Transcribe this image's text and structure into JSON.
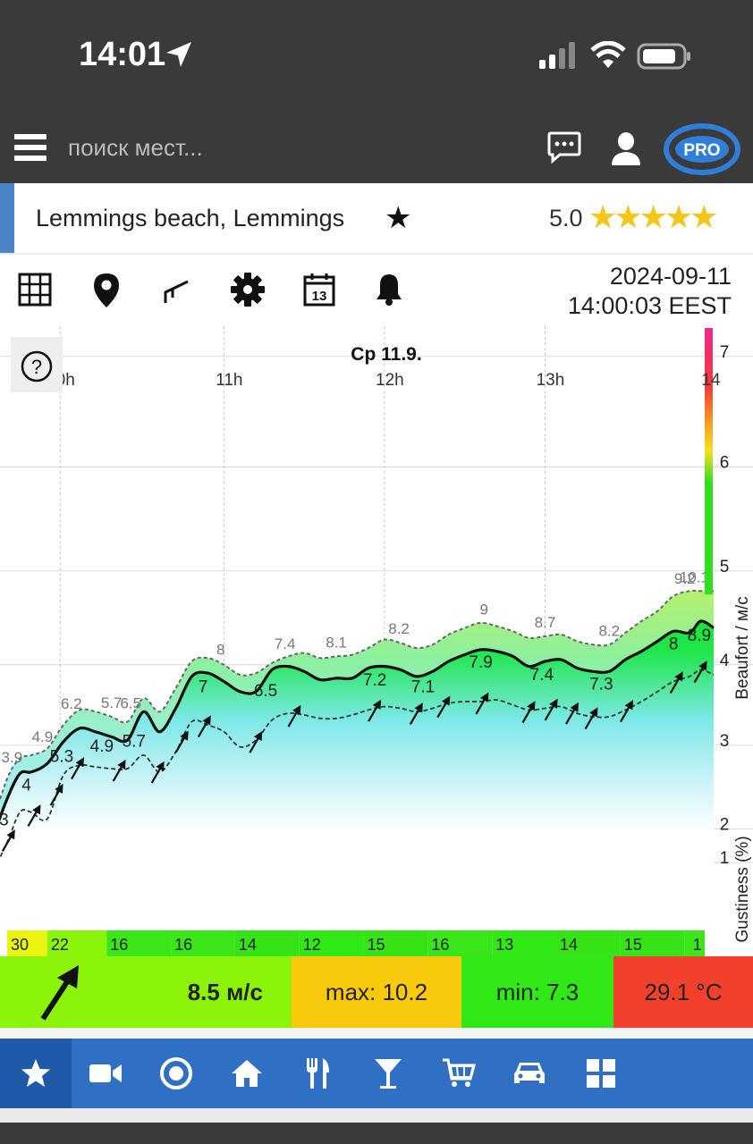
{
  "status_bar": {
    "time": "14:01"
  },
  "top_bar": {
    "search_placeholder": "поиск мест...",
    "pro_label": "PRO"
  },
  "spot": {
    "name": "Lemmings beach, Lemmings",
    "rating": "5.0",
    "stars": "★★★★★"
  },
  "toolbar": {
    "date": "2024-09-11",
    "time": "14:00:03 EEST",
    "calendar_day": "13"
  },
  "chart_data": {
    "type": "area",
    "title": "Ср 11.9.",
    "help_label": "?",
    "time_labels": [
      {
        "t": 9.98,
        "label": "0h"
      },
      {
        "t": 11,
        "label": "11h"
      },
      {
        "t": 12,
        "label": "12h"
      },
      {
        "t": 13,
        "label": "13h"
      },
      {
        "t": 14,
        "label": "14"
      }
    ],
    "y_right_label": "Beaufort / м/с",
    "y_right_label_2": "Gustiness (%)",
    "beaufort_ticks": [
      {
        "value": 2.0,
        "label": "1"
      },
      {
        "value": 3.0,
        "label": "2"
      },
      {
        "value": 5.5,
        "label": "3"
      },
      {
        "value": 7.9,
        "label": "4"
      },
      {
        "value": 10.7,
        "label": "5"
      },
      {
        "value": 13.8,
        "label": "6"
      },
      {
        "value": 17.1,
        "label": "7"
      }
    ],
    "ylim": [
      0,
      18
    ],
    "xlim": [
      9.55,
      14.05
    ],
    "wind": [
      [
        9.55,
        2.6
      ],
      [
        9.65,
        3.9
      ],
      [
        9.73,
        4.65
      ],
      [
        9.8,
        4.7
      ],
      [
        9.9,
        4.95
      ],
      [
        10.0,
        5.6
      ],
      [
        10.1,
        6.0
      ],
      [
        10.2,
        5.9
      ],
      [
        10.3,
        5.75
      ],
      [
        10.4,
        5.65
      ],
      [
        10.5,
        6.5
      ],
      [
        10.6,
        5.9
      ],
      [
        10.7,
        6.6
      ],
      [
        10.8,
        7.55
      ],
      [
        10.9,
        7.65
      ],
      [
        11.0,
        7.4
      ],
      [
        11.1,
        7.1
      ],
      [
        11.2,
        7.1
      ],
      [
        11.3,
        7.75
      ],
      [
        11.4,
        7.85
      ],
      [
        11.5,
        7.7
      ],
      [
        11.6,
        7.45
      ],
      [
        11.7,
        7.5
      ],
      [
        11.8,
        7.5
      ],
      [
        11.9,
        7.8
      ],
      [
        12.0,
        7.85
      ],
      [
        12.1,
        7.75
      ],
      [
        12.2,
        7.55
      ],
      [
        12.3,
        7.7
      ],
      [
        12.4,
        8.0
      ],
      [
        12.5,
        8.2
      ],
      [
        12.6,
        8.35
      ],
      [
        12.7,
        8.3
      ],
      [
        12.8,
        8.15
      ],
      [
        12.9,
        7.85
      ],
      [
        13.0,
        8.0
      ],
      [
        13.1,
        8.05
      ],
      [
        13.2,
        7.8
      ],
      [
        13.3,
        7.7
      ],
      [
        13.4,
        7.7
      ],
      [
        13.5,
        8.05
      ],
      [
        13.6,
        8.3
      ],
      [
        13.7,
        8.6
      ],
      [
        13.8,
        8.9
      ],
      [
        13.9,
        8.85
      ],
      [
        13.97,
        9.2
      ],
      [
        14.05,
        9.0
      ]
    ],
    "gust": [
      [
        9.55,
        3.0
      ],
      [
        9.65,
        4.5
      ],
      [
        9.73,
        5.1
      ],
      [
        9.8,
        5.2
      ],
      [
        9.9,
        5.4
      ],
      [
        10.0,
        6.1
      ],
      [
        10.1,
        6.55
      ],
      [
        10.2,
        6.5
      ],
      [
        10.3,
        6.35
      ],
      [
        10.4,
        6.2
      ],
      [
        10.5,
        6.9
      ],
      [
        10.6,
        6.5
      ],
      [
        10.7,
        7.2
      ],
      [
        10.8,
        8.0
      ],
      [
        10.9,
        8.1
      ],
      [
        11.0,
        7.9
      ],
      [
        11.1,
        7.6
      ],
      [
        11.2,
        7.65
      ],
      [
        11.3,
        7.95
      ],
      [
        11.4,
        8.15
      ],
      [
        11.5,
        8.25
      ],
      [
        11.6,
        8.1
      ],
      [
        11.7,
        8.15
      ],
      [
        11.8,
        8.2
      ],
      [
        11.9,
        8.4
      ],
      [
        12.0,
        8.65
      ],
      [
        12.1,
        8.55
      ],
      [
        12.2,
        8.4
      ],
      [
        12.3,
        8.5
      ],
      [
        12.4,
        8.8
      ],
      [
        12.5,
        9.0
      ],
      [
        12.6,
        9.15
      ],
      [
        12.7,
        9.05
      ],
      [
        12.8,
        8.9
      ],
      [
        12.9,
        8.7
      ],
      [
        13.0,
        8.75
      ],
      [
        13.1,
        8.8
      ],
      [
        13.2,
        8.6
      ],
      [
        13.3,
        8.5
      ],
      [
        13.4,
        8.5
      ],
      [
        13.5,
        8.85
      ],
      [
        13.6,
        9.2
      ],
      [
        13.7,
        9.5
      ],
      [
        13.8,
        9.95
      ],
      [
        13.9,
        10.1
      ],
      [
        13.97,
        10.1
      ],
      [
        14.05,
        10.1
      ]
    ],
    "lull": [
      [
        9.55,
        1.6
      ],
      [
        9.65,
        2.6
      ],
      [
        9.73,
        3.5
      ],
      [
        9.8,
        3.5
      ],
      [
        9.9,
        3.3
      ],
      [
        10.0,
        4.6
      ],
      [
        10.1,
        4.9
      ],
      [
        10.2,
        4.85
      ],
      [
        10.3,
        4.8
      ],
      [
        10.4,
        4.8
      ],
      [
        10.5,
        5.2
      ],
      [
        10.6,
        4.7
      ],
      [
        10.7,
        5.3
      ],
      [
        10.8,
        6.2
      ],
      [
        10.9,
        6.1
      ],
      [
        11.0,
        5.9
      ],
      [
        11.1,
        5.45
      ],
      [
        11.2,
        5.65
      ],
      [
        11.3,
        6.25
      ],
      [
        11.4,
        6.45
      ],
      [
        11.5,
        6.4
      ],
      [
        11.6,
        6.3
      ],
      [
        11.7,
        6.3
      ],
      [
        11.8,
        6.4
      ],
      [
        11.9,
        6.55
      ],
      [
        12.0,
        6.65
      ],
      [
        12.1,
        6.6
      ],
      [
        12.2,
        6.5
      ],
      [
        12.3,
        6.6
      ],
      [
        12.4,
        6.75
      ],
      [
        12.5,
        6.8
      ],
      [
        12.6,
        6.8
      ],
      [
        12.7,
        6.85
      ],
      [
        12.8,
        6.7
      ],
      [
        12.9,
        6.55
      ],
      [
        13.0,
        6.6
      ],
      [
        13.1,
        6.65
      ],
      [
        13.2,
        6.45
      ],
      [
        13.3,
        6.35
      ],
      [
        13.4,
        6.35
      ],
      [
        13.5,
        6.55
      ],
      [
        13.6,
        6.8
      ],
      [
        13.7,
        7.1
      ],
      [
        13.8,
        7.4
      ],
      [
        13.9,
        7.55
      ],
      [
        13.97,
        7.75
      ],
      [
        14.05,
        7.6
      ]
    ],
    "gust_labels": [
      {
        "t": 9.68,
        "v": "3.9"
      },
      {
        "t": 9.87,
        "v": "4.9"
      },
      {
        "t": 10.05,
        "v": "6.2"
      },
      {
        "t": 10.3,
        "v": "5.7"
      },
      {
        "t": 10.42,
        "v": "6.5"
      },
      {
        "t": 10.98,
        "v": "8"
      },
      {
        "t": 11.38,
        "v": "7.4"
      },
      {
        "t": 11.7,
        "v": "8.1"
      },
      {
        "t": 12.09,
        "v": "8.2"
      },
      {
        "t": 12.62,
        "v": "9"
      },
      {
        "t": 13.0,
        "v": "8.7"
      },
      {
        "t": 13.4,
        "v": "8.2"
      },
      {
        "t": 13.87,
        "v": "9.2"
      },
      {
        "t": 13.93,
        "v": "10.1"
      }
    ],
    "wind_labels": [
      {
        "t": 9.63,
        "v": "3"
      },
      {
        "t": 9.77,
        "v": "4"
      },
      {
        "t": 9.99,
        "v": "5.3"
      },
      {
        "t": 10.24,
        "v": "4.9"
      },
      {
        "t": 10.44,
        "v": "5.7"
      },
      {
        "t": 10.87,
        "v": "7"
      },
      {
        "t": 11.26,
        "v": "6.5"
      },
      {
        "t": 11.94,
        "v": "7.2"
      },
      {
        "t": 12.24,
        "v": "7.1"
      },
      {
        "t": 12.6,
        "v": "7.9"
      },
      {
        "t": 12.98,
        "v": "7.4"
      },
      {
        "t": 13.35,
        "v": "7.3"
      },
      {
        "t": 13.8,
        "v": "8"
      },
      {
        "t": 13.96,
        "v": "8.9"
      }
    ],
    "arrow_times": [
      9.55,
      9.66,
      9.82,
      9.96,
      10.09,
      10.35,
      10.59,
      10.74,
      10.88,
      11.2,
      11.44,
      11.94,
      12.2,
      12.37,
      12.61,
      12.9,
      13.04,
      13.17,
      13.29,
      13.51,
      13.82,
      13.97
    ],
    "gustiness": [
      {
        "t": 9.55,
        "label": "30",
        "color": "#e9f50f"
      },
      {
        "t": 9.9,
        "label": "22",
        "color": "#8cf40a"
      },
      {
        "t": 10.27,
        "label": "16",
        "color": "#3ae61a"
      },
      {
        "t": 10.67,
        "label": "16",
        "color": "#3ae61a"
      },
      {
        "t": 11.07,
        "label": "14",
        "color": "#35e316"
      },
      {
        "t": 11.47,
        "label": "12",
        "color": "#2fe816"
      },
      {
        "t": 11.87,
        "label": "15",
        "color": "#35e316"
      },
      {
        "t": 12.27,
        "label": "16",
        "color": "#3ae61a"
      },
      {
        "t": 12.67,
        "label": "13",
        "color": "#2fe816"
      },
      {
        "t": 13.07,
        "label": "14",
        "color": "#35e316"
      },
      {
        "t": 13.47,
        "label": "15",
        "color": "#35e316"
      },
      {
        "t": 13.87,
        "label": "1",
        "color": "#3ae61a"
      }
    ]
  },
  "info_bar": {
    "wind_value": "8.5 м/с",
    "max_label": "max: 10.2",
    "min_label": "min: 7.3",
    "temperature": "29.1 °C"
  },
  "nav": {
    "items": [
      "favorites-icon",
      "webcam-icon",
      "spots-icon",
      "accommodation-icon",
      "food-icon",
      "bar-icon",
      "shop-icon",
      "car-icon",
      "more-icon"
    ]
  }
}
